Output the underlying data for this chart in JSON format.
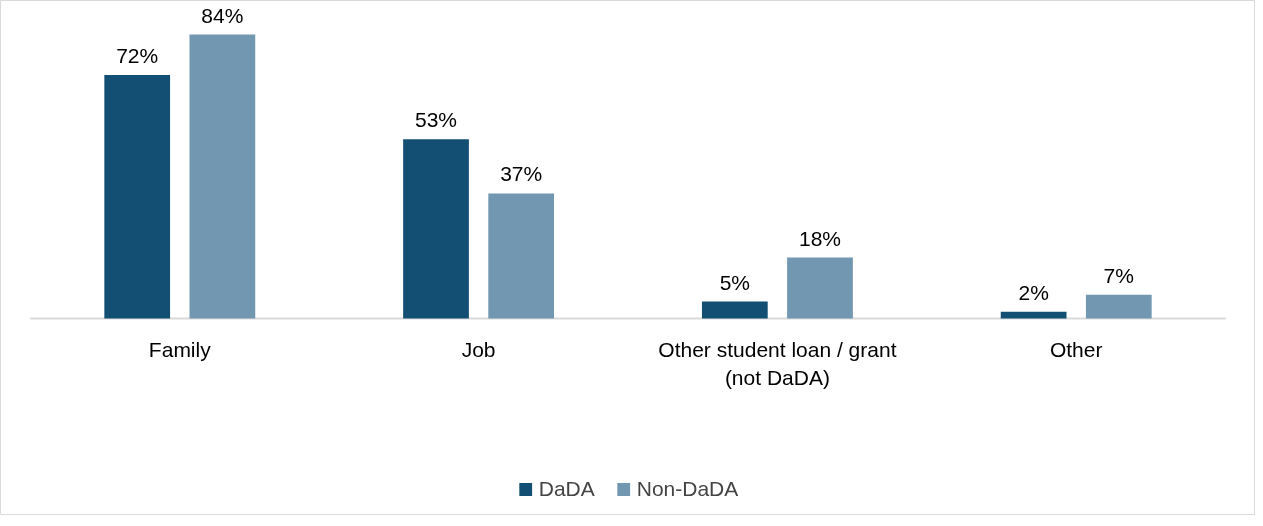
{
  "chart_data": {
    "type": "bar",
    "categories": [
      "Family",
      "Job",
      "Other student loan / grant (not DaDA)",
      "Other"
    ],
    "series": [
      {
        "name": "DaDA",
        "color": "#134f73",
        "values": [
          72,
          53,
          5,
          2
        ],
        "value_labels": [
          "72%",
          "53%",
          "5%",
          "2%"
        ]
      },
      {
        "name": "Non-DaDA",
        "color": "#7297b0",
        "values": [
          84,
          37,
          18,
          7
        ],
        "value_labels": [
          "84%",
          "37%",
          "18%",
          "7%"
        ]
      }
    ],
    "legend": "bottom",
    "tick_labels": "x"
  }
}
